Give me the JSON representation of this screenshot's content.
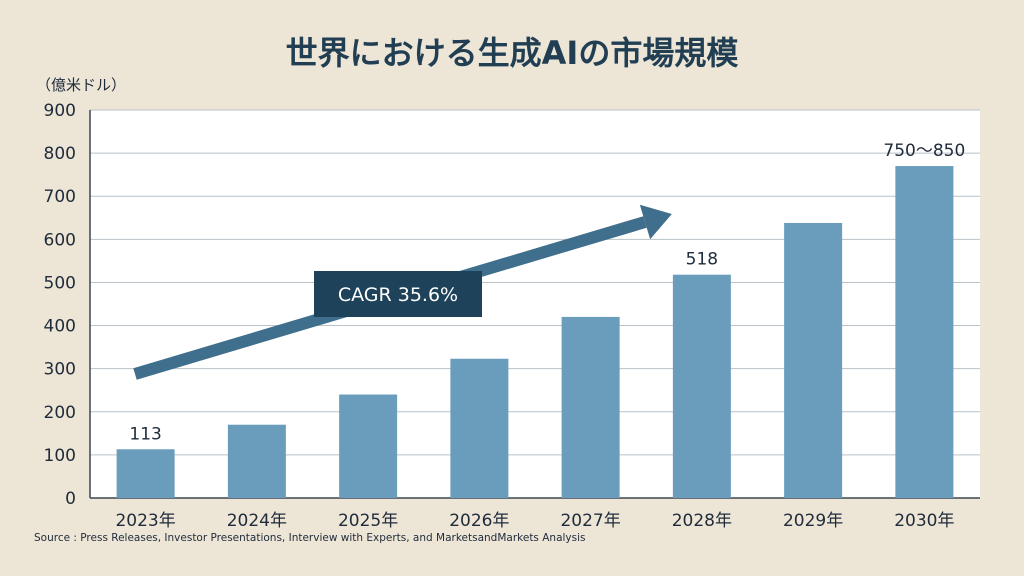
{
  "title": "世界における生成AIの市場規模",
  "unit_label": "（億米ドル）",
  "source": "Source : Press Releases, Investor Presentations, Interview with Experts, and MarketsandMarkets Analysis",
  "cagr_label": "CAGR 35.6%",
  "colors": {
    "bar": "#6a9dbb",
    "arrow": "#3f6f8d",
    "cagr_box": "#1e4259",
    "background": "#ede6d7",
    "plot": "#ffffff",
    "grid": "#b9c2c9"
  },
  "chart_data": {
    "type": "bar",
    "title": "世界における生成AIの市場規模",
    "ylabel": "（億米ドル）",
    "xlabel": "",
    "categories": [
      "2023年",
      "2024年",
      "2025年",
      "2026年",
      "2027年",
      "2028年",
      "2029年",
      "2030年"
    ],
    "values": [
      113,
      170,
      240,
      323,
      420,
      518,
      638,
      770
    ],
    "ylim": [
      0,
      900
    ],
    "yticks": [
      0,
      100,
      200,
      300,
      400,
      500,
      600,
      700,
      800,
      900
    ],
    "grid": true,
    "data_labels": [
      {
        "index": 0,
        "text": "113"
      },
      {
        "index": 5,
        "text": "518"
      },
      {
        "index": 7,
        "text": "750～850"
      }
    ],
    "annotations": [
      "CAGR 35.6%"
    ]
  }
}
